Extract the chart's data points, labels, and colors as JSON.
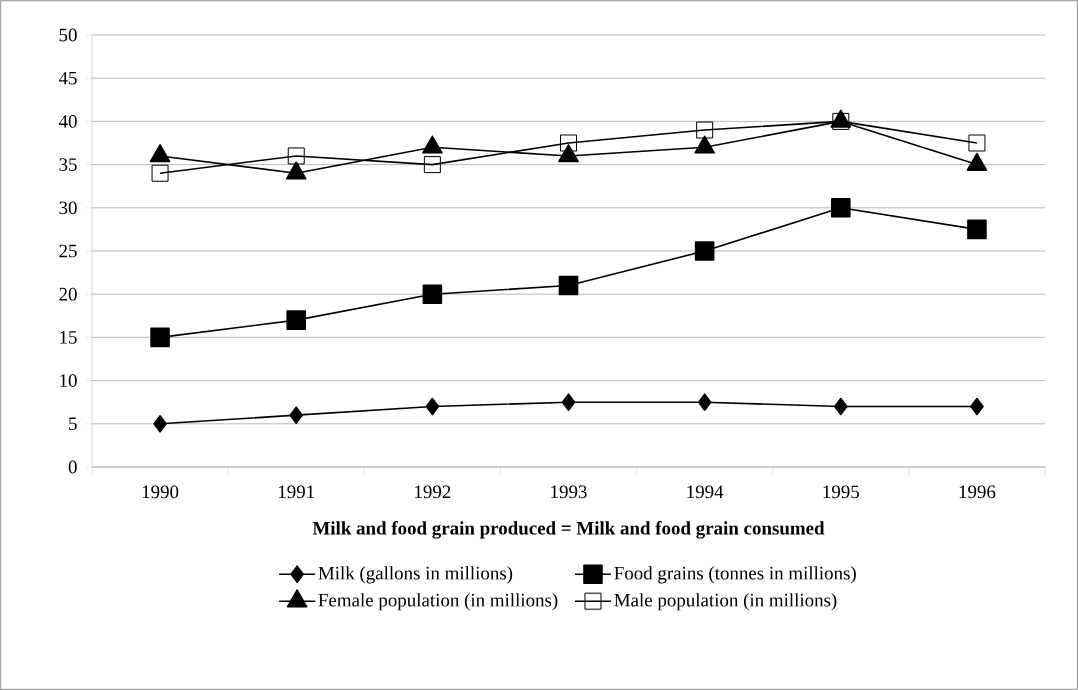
{
  "chart_data": {
    "type": "line",
    "xlabel": "**Milk and food grain produced = Milk and food grain consumed**",
    "categories": [
      "1990",
      "1991",
      "1992",
      "1993",
      "1994",
      "1995",
      "1996"
    ],
    "series": [
      {
        "name": "Milk (gallons in millions)",
        "color": "#000000",
        "marker": "diamond",
        "values": [
          5,
          6,
          7,
          7.5,
          7.5,
          7,
          7
        ]
      },
      {
        "name": "Food grains (tonnes in millions)",
        "color": "#000000",
        "marker": "square",
        "values": [
          15,
          17,
          20,
          21,
          25,
          30,
          27.5
        ]
      },
      {
        "name": "Female population (in millions)",
        "color": "#000000",
        "marker": "triangle",
        "values": [
          36,
          34,
          37,
          36,
          37,
          40,
          35
        ]
      },
      {
        "name": "Male population (in millions)",
        "color": "#000000",
        "marker": "square-open",
        "values": [
          34,
          36,
          35,
          37.5,
          39,
          40,
          37.5
        ]
      }
    ],
    "ylim": [
      0,
      50
    ],
    "yticks": [
      0,
      5,
      10,
      15,
      20,
      25,
      30,
      35,
      40,
      45,
      50
    ],
    "grid": "y",
    "legend": "bottom",
    "line_style": "solid"
  }
}
